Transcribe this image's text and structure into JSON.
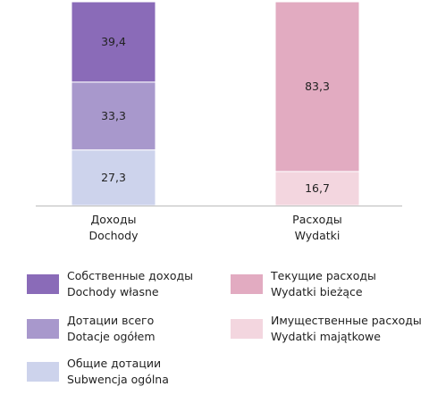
{
  "chart_data": {
    "type": "stacked_bar",
    "categories": [
      "Доходы\nDochody",
      "Расходы\nWydatki"
    ],
    "ylim": [
      0,
      100
    ],
    "series": [
      {
        "name": "Общие дотации\nSubwencja ogólna",
        "color": "#cdd3ec",
        "values": [
          27.3,
          null
        ],
        "value_labels": [
          "27,3",
          null
        ]
      },
      {
        "name": "Дотации всего\nDotacje ogółem",
        "color": "#a898cc",
        "values": [
          33.3,
          null
        ],
        "value_labels": [
          "33,3",
          null
        ]
      },
      {
        "name": "Собственные доходы\nDochody własne",
        "color": "#8a6bb8",
        "values": [
          39.4,
          null
        ],
        "value_labels": [
          "39,4",
          null
        ]
      },
      {
        "name": "Имущественные расходы\nWydatki majątkowe",
        "color": "#f3d6df",
        "values": [
          null,
          16.7
        ],
        "value_labels": [
          null,
          "16,7"
        ]
      },
      {
        "name": "Текущие расходы\nWydatki bieżące",
        "color": "#e2abc1",
        "values": [
          null,
          83.3
        ],
        "value_labels": [
          null,
          "83,3"
        ]
      }
    ]
  }
}
